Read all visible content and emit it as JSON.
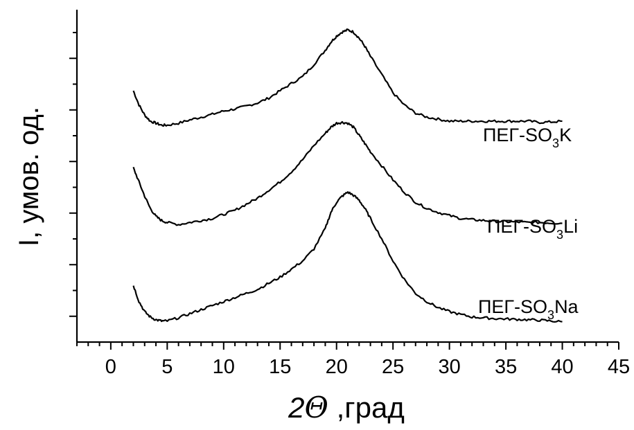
{
  "chart_data": {
    "type": "line",
    "xlabel_prefix": "2",
    "xlabel_symbol": "Θ",
    "xlabel_suffix": " ,град",
    "ylabel": "I, умов. од.",
    "xlim": [
      -3,
      45
    ],
    "xticks": [
      "0",
      "5",
      "10",
      "15",
      "20",
      "25",
      "30",
      "35",
      "40",
      "45"
    ],
    "y_tick_count": 12,
    "y_ticks_labeled": false,
    "series": [
      {
        "name_main": "ПЕГ-SO",
        "name_sub": "3",
        "name_tail": "K",
        "x": [
          2,
          2.5,
          3,
          3.5,
          4,
          4.5,
          5,
          6,
          7,
          8,
          9,
          10,
          11,
          12,
          13,
          14,
          15,
          16,
          17,
          18,
          19,
          19.5,
          20,
          20.5,
          21,
          21.5,
          22,
          22.5,
          23,
          24,
          25,
          26,
          27,
          28,
          29,
          30,
          31,
          32,
          33,
          34,
          35,
          36,
          37,
          38,
          39,
          40
        ],
        "y": [
          9.2,
          8.85,
          8.6,
          8.45,
          8.4,
          8.35,
          8.35,
          8.4,
          8.48,
          8.55,
          8.62,
          8.7,
          8.75,
          8.82,
          8.9,
          9.02,
          9.2,
          9.38,
          9.55,
          9.85,
          10.2,
          10.4,
          10.55,
          10.65,
          10.7,
          10.65,
          10.5,
          10.3,
          10.05,
          9.6,
          9.15,
          8.85,
          8.65,
          8.55,
          8.5,
          8.45,
          8.45,
          8.45,
          8.45,
          8.45,
          8.45,
          8.45,
          8.45,
          8.42,
          8.43,
          8.45
        ]
      },
      {
        "name_main": "ПЕГ-SO",
        "name_sub": "3",
        "name_tail": "Li",
        "x": [
          2,
          2.5,
          3,
          3.5,
          4,
          4.5,
          5,
          6,
          7,
          8,
          9,
          10,
          11,
          12,
          13,
          14,
          15,
          16,
          17,
          18,
          19,
          19.5,
          20,
          20.5,
          21,
          21.5,
          22,
          22.5,
          23,
          24,
          25,
          26,
          27,
          28,
          29,
          30,
          31,
          32,
          33,
          34,
          35,
          36,
          37,
          38,
          39,
          40
        ],
        "y": [
          7.3,
          6.95,
          6.6,
          6.3,
          6.1,
          6.0,
          5.95,
          5.9,
          5.95,
          6.0,
          6.05,
          6.15,
          6.25,
          6.4,
          6.55,
          6.75,
          6.95,
          7.2,
          7.5,
          7.85,
          8.15,
          8.3,
          8.4,
          8.42,
          8.4,
          8.3,
          8.1,
          7.9,
          7.7,
          7.35,
          7.0,
          6.7,
          6.45,
          6.3,
          6.2,
          6.12,
          6.05,
          6.02,
          6.0,
          5.98,
          5.97,
          5.96,
          5.95,
          5.95,
          5.94,
          5.93
        ]
      },
      {
        "name_main": "ПЕГ-SO",
        "name_sub": "3",
        "name_tail": "Na",
        "x": [
          2,
          2.5,
          3,
          3.5,
          4,
          4.5,
          5,
          6,
          7,
          8,
          9,
          10,
          11,
          12,
          13,
          14,
          15,
          16,
          17,
          18,
          19,
          19.5,
          20,
          20.5,
          21,
          21.5,
          22,
          22.5,
          23,
          24,
          25,
          26,
          27,
          28,
          29,
          30,
          31,
          32,
          33,
          34,
          35,
          36,
          37,
          38,
          39,
          40
        ],
        "y": [
          4.4,
          4.0,
          3.75,
          3.62,
          3.55,
          3.52,
          3.52,
          3.6,
          3.7,
          3.8,
          3.9,
          4.0,
          4.1,
          4.2,
          4.3,
          4.45,
          4.6,
          4.8,
          5.0,
          5.3,
          5.8,
          6.2,
          6.45,
          6.6,
          6.7,
          6.62,
          6.5,
          6.3,
          6.05,
          5.55,
          5.0,
          4.55,
          4.2,
          4.0,
          3.85,
          3.75,
          3.68,
          3.62,
          3.6,
          3.58,
          3.57,
          3.56,
          3.55,
          3.54,
          3.52,
          3.5
        ]
      }
    ]
  }
}
